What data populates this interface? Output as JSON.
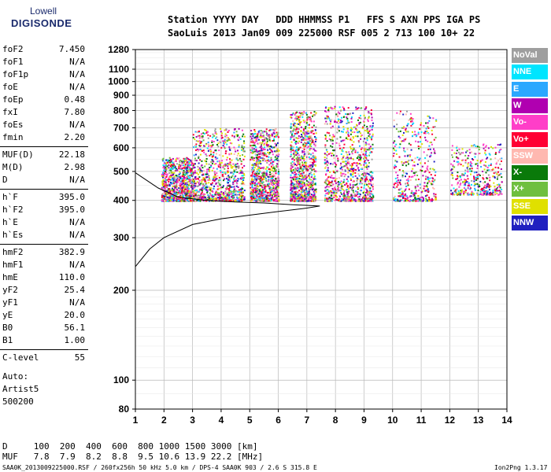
{
  "logo": {
    "line1": "Lowell",
    "line2": "DIGISONDE"
  },
  "header": {
    "line1": "Station YYYY DAY   DDD HHMMSS P1   FFS S AXN PPS IGA PS",
    "line2": "SaoLuis 2013 Jan09 009 225000 RSF 005 2 713 100 10+ 22"
  },
  "params": {
    "group1": [
      {
        "name": "foF2",
        "value": "7.450"
      },
      {
        "name": "foF1",
        "value": "N/A"
      },
      {
        "name": "foF1p",
        "value": "N/A"
      },
      {
        "name": "foE",
        "value": "N/A"
      },
      {
        "name": "foEp",
        "value": "0.48"
      },
      {
        "name": "fxI",
        "value": "7.80"
      },
      {
        "name": "foEs",
        "value": "N/A"
      },
      {
        "name": "fmin",
        "value": "2.20"
      }
    ],
    "group2": [
      {
        "name": "MUF(D)",
        "value": "22.18"
      },
      {
        "name": "M(D)",
        "value": "2.98"
      },
      {
        "name": "D",
        "value": "N/A"
      }
    ],
    "group3": [
      {
        "name": "h`F",
        "value": "395.0"
      },
      {
        "name": "h`F2",
        "value": "395.0"
      },
      {
        "name": "h`E",
        "value": "N/A"
      },
      {
        "name": "h`Es",
        "value": "N/A"
      }
    ],
    "group4": [
      {
        "name": "hmF2",
        "value": "382.9"
      },
      {
        "name": "hmF1",
        "value": "N/A"
      },
      {
        "name": "hmE",
        "value": "110.0"
      },
      {
        "name": "yF2",
        "value": "25.4"
      },
      {
        "name": "yF1",
        "value": "N/A"
      },
      {
        "name": "yE",
        "value": "20.0"
      },
      {
        "name": "B0",
        "value": "56.1"
      },
      {
        "name": "B1",
        "value": "1.00"
      }
    ],
    "group5": [
      {
        "name": "C-level",
        "value": "55"
      }
    ],
    "auto": [
      "Auto:",
      "Artist5",
      "500200"
    ]
  },
  "bottom": {
    "d_row": "D     100  200  400  600  800 1000 1500 3000 [km]",
    "muf_row": "MUF   7.8  7.9  8.2  8.8  9.5 10.6 13.9 22.2 [MHz]",
    "footer_left": "SAA0K_2013009225000.RSF / 260fx256h 50 kHz 5.0 km / DPS-4 SAA0K 903 / 2.6 S 315.8 E",
    "footer_right": "Ion2Png 1.3.17"
  },
  "legend": [
    {
      "label": "NoVal",
      "color": "#9e9e9e"
    },
    {
      "label": "NNE",
      "color": "#00e5ff"
    },
    {
      "label": "E",
      "color": "#2aa8ff"
    },
    {
      "label": "W",
      "color": "#b000b0"
    },
    {
      "label": "Vo-",
      "color": "#ff3ec8"
    },
    {
      "label": "Vo+",
      "color": "#ff0033"
    },
    {
      "label": "SSW",
      "color": "#ffb8b0"
    },
    {
      "label": "X-",
      "color": "#0a7a0a"
    },
    {
      "label": "X+",
      "color": "#6fbf3f"
    },
    {
      "label": "SSE",
      "color": "#e0e000"
    },
    {
      "label": "NNW",
      "color": "#2020c0"
    }
  ],
  "chart_data": {
    "type": "scatter",
    "title": "",
    "xlabel": "",
    "ylabel": "",
    "xlim": [
      1,
      14
    ],
    "x_ticks": [
      1,
      2,
      3,
      4,
      5,
      6,
      7,
      8,
      9,
      10,
      11,
      12,
      13,
      14
    ],
    "ylim": [
      80,
      1280
    ],
    "y_scale": "log",
    "y_ticks": [
      80,
      100,
      200,
      300,
      400,
      500,
      600,
      700,
      800,
      900,
      1000,
      1100,
      1280
    ],
    "grid": true,
    "clusters": [
      {
        "freq_range": [
          1.9,
          3.0
        ],
        "height_range": [
          400,
          560
        ],
        "density": "high"
      },
      {
        "freq_range": [
          3.0,
          4.8
        ],
        "height_range": [
          400,
          700
        ],
        "density": "high"
      },
      {
        "freq_range": [
          5.0,
          6.0
        ],
        "height_range": [
          400,
          700
        ],
        "density": "high"
      },
      {
        "freq_range": [
          6.4,
          7.3
        ],
        "height_range": [
          400,
          800
        ],
        "density": "high"
      },
      {
        "freq_range": [
          7.6,
          9.3
        ],
        "height_range": [
          400,
          830
        ],
        "density": "high"
      },
      {
        "freq_range": [
          10.0,
          11.5
        ],
        "height_range": [
          400,
          800
        ],
        "density": "medium"
      },
      {
        "freq_range": [
          12.0,
          13.8
        ],
        "height_range": [
          420,
          620
        ],
        "density": "medium"
      }
    ],
    "profile_curve": [
      [
        1.0,
        240
      ],
      [
        1.5,
        275
      ],
      [
        2.0,
        300
      ],
      [
        3.0,
        332
      ],
      [
        4.0,
        347
      ],
      [
        5.0,
        357
      ],
      [
        6.0,
        367
      ],
      [
        7.0,
        377
      ],
      [
        7.45,
        382.9
      ]
    ],
    "trace_curve": [
      [
        7.45,
        382.9
      ],
      [
        6.5,
        387
      ],
      [
        5.5,
        392
      ],
      [
        4.5,
        395
      ],
      [
        3.5,
        400
      ],
      [
        2.5,
        410
      ],
      [
        1.8,
        440
      ],
      [
        1.0,
        495
      ]
    ]
  }
}
